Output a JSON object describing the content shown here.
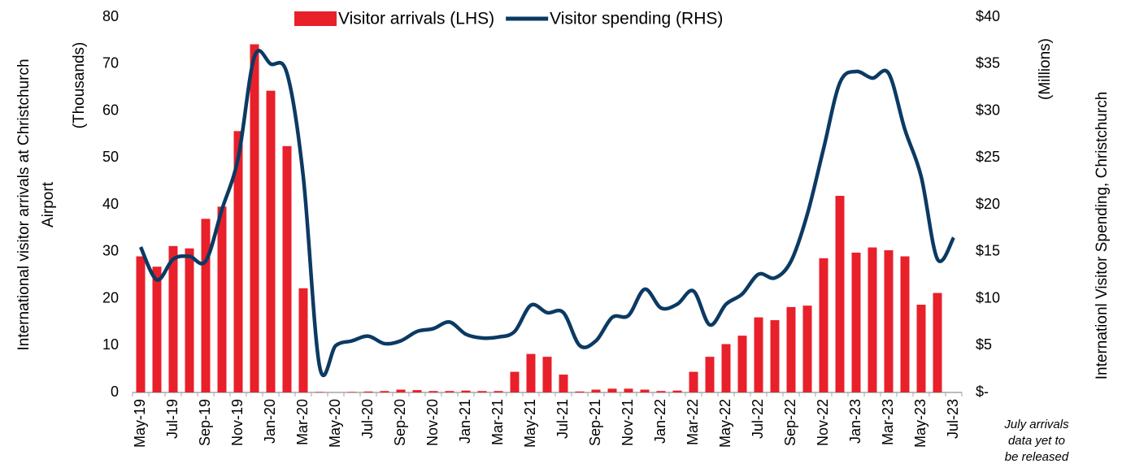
{
  "chart_data": {
    "type": "combo",
    "categories": [
      "May-19",
      null,
      "Jul-19",
      null,
      "Sep-19",
      null,
      "Nov-19",
      null,
      "Jan-20",
      null,
      "Mar-20",
      null,
      "May-20",
      null,
      "Jul-20",
      null,
      "Sep-20",
      null,
      "Nov-20",
      null,
      "Jan-21",
      null,
      "Mar-21",
      null,
      "May-21",
      null,
      "Jul-21",
      null,
      "Sep-21",
      null,
      "Nov-21",
      null,
      "Jan-22",
      null,
      "Mar-22",
      null,
      "May-22",
      null,
      "Jul-22",
      null,
      "Sep-22",
      null,
      "Nov-22",
      null,
      "Jan-23",
      null,
      "Mar-23",
      null,
      "May-23",
      null,
      "Jul-23"
    ],
    "series": [
      {
        "name": "Visitor arrivals (LHS)",
        "type": "bar",
        "color": "#e8202a",
        "values": [
          29,
          26.8,
          31.2,
          30.7,
          37,
          39.6,
          55.7,
          74.2,
          64.3,
          52.5,
          22.2,
          0.1,
          0,
          0.1,
          0.2,
          0.3,
          0.6,
          0.5,
          0.3,
          0.3,
          0.4,
          0.3,
          0.3,
          4.4,
          8.2,
          7.6,
          3.8,
          0.2,
          0.6,
          0.8,
          0.8,
          0.6,
          0.3,
          0.4,
          4.4,
          7.6,
          10.3,
          12.1,
          16,
          15.4,
          18.2,
          18.5,
          28.6,
          41.9,
          29.8,
          30.9,
          30.3,
          29,
          18.7,
          21.2,
          null
        ]
      },
      {
        "name": "Visitor spending (RHS)",
        "type": "line",
        "axis": "y2",
        "color": "#0b3a63",
        "values": [
          15.5,
          12,
          14.2,
          14.5,
          14,
          19.5,
          25,
          35.8,
          35,
          34,
          23,
          2.8,
          5,
          5.5,
          6,
          5.2,
          5.5,
          6.5,
          6.8,
          7.5,
          6.2,
          5.8,
          5.9,
          6.5,
          9.3,
          8.5,
          8.5,
          5,
          5.5,
          8,
          8.2,
          11,
          9,
          9.4,
          10.8,
          7.2,
          9.4,
          10.5,
          12.6,
          12.2,
          14,
          19,
          26,
          33,
          34.2,
          33.5,
          34,
          28,
          23,
          14.2,
          16.5
        ]
      }
    ],
    "ylabel": [
      "International visitor arrivals at Christchurch",
      "Airport"
    ],
    "ylabel_units": "(Thousands)",
    "y2label": "Internationl Visitor Spending, Christchurch",
    "y2label_units": "(Millions)",
    "annotation": [
      "July arrivals",
      "data yet to",
      "be released"
    ],
    "ylim": [
      0,
      80
    ],
    "yticks": [
      0,
      10,
      20,
      30,
      40,
      50,
      60,
      70,
      80
    ],
    "y2lim": [
      0,
      40
    ],
    "y2ticks": [
      {
        "value": 0,
        "label": "$-"
      },
      {
        "value": 5,
        "label": "$5"
      },
      {
        "value": 10,
        "label": "$10"
      },
      {
        "value": 15,
        "label": "$15"
      },
      {
        "value": 20,
        "label": "$20"
      },
      {
        "value": 25,
        "label": "$25"
      },
      {
        "value": 30,
        "label": "$30"
      },
      {
        "value": 35,
        "label": "$35"
      },
      {
        "value": 40,
        "label": "$40"
      }
    ],
    "legend": "top"
  }
}
